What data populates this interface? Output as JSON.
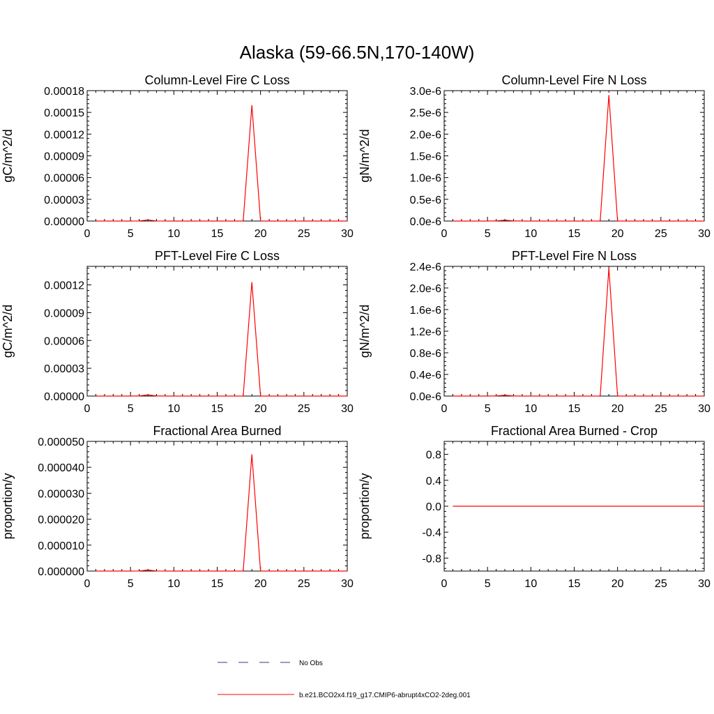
{
  "figure_title": "Alaska (59-66.5N,170-140W)",
  "legend": {
    "items": [
      {
        "label": "No Obs",
        "color": "#2a3a8c",
        "dash": true
      },
      {
        "label": "b.e21.BCO2x4.f19_g17.CMIP6-abrupt4xCO2-2deg.001",
        "color": "#ff0000",
        "dash": false
      }
    ]
  },
  "chart_data": [
    {
      "type": "line",
      "title": "Column-Level Fire C Loss",
      "ylabel": "gC/m^2/d",
      "xlim": [
        0,
        30
      ],
      "ylim": [
        0,
        0.00018
      ],
      "xticks": [
        0,
        5,
        10,
        15,
        20,
        25,
        30
      ],
      "xtick_labels": [
        "0",
        "5",
        "10",
        "15",
        "20",
        "25",
        "30"
      ],
      "yticks": [
        0,
        3e-05,
        6e-05,
        9e-05,
        0.00012,
        0.00015,
        0.00018
      ],
      "ytick_labels": [
        "0.00000",
        "0.00003",
        "0.00006",
        "0.00009",
        "0.00012",
        "0.00015",
        "0.00018"
      ],
      "series": [
        {
          "color": "#ff0000",
          "x": [
            1,
            2,
            3,
            4,
            5,
            6,
            7,
            8,
            9,
            10,
            11,
            12,
            13,
            14,
            15,
            16,
            17,
            18,
            19,
            20,
            21,
            22,
            23,
            24,
            25,
            26,
            27,
            28,
            29,
            30
          ],
          "values": [
            0,
            0,
            0,
            0,
            0,
            2e-07,
            1.5e-06,
            2e-07,
            0,
            0,
            0,
            0,
            0,
            0,
            0,
            0,
            0,
            0,
            0.00016,
            0,
            0,
            0,
            0,
            0,
            0,
            0,
            0,
            0,
            0,
            0
          ]
        }
      ]
    },
    {
      "type": "line",
      "title": "Column-Level Fire N Loss",
      "ylabel": "gN/m^2/d",
      "xlim": [
        0,
        30
      ],
      "ylim": [
        0,
        3e-06
      ],
      "xticks": [
        0,
        5,
        10,
        15,
        20,
        25,
        30
      ],
      "xtick_labels": [
        "0",
        "5",
        "10",
        "15",
        "20",
        "25",
        "30"
      ],
      "yticks": [
        0,
        5e-07,
        1e-06,
        1.5e-06,
        2e-06,
        2.5e-06,
        3e-06
      ],
      "ytick_labels": [
        "0.0e-6",
        "0.5e-6",
        "1.0e-6",
        "1.5e-6",
        "2.0e-6",
        "2.5e-6",
        "3.0e-6"
      ],
      "series": [
        {
          "color": "#ff0000",
          "x": [
            1,
            2,
            3,
            4,
            5,
            6,
            7,
            8,
            9,
            10,
            11,
            12,
            13,
            14,
            15,
            16,
            17,
            18,
            19,
            20,
            21,
            22,
            23,
            24,
            25,
            26,
            27,
            28,
            29,
            30
          ],
          "values": [
            0,
            0,
            0,
            0,
            0,
            4e-09,
            2e-08,
            4e-09,
            0,
            0,
            0,
            0,
            0,
            0,
            0,
            0,
            0,
            0,
            2.9e-06,
            0,
            0,
            0,
            0,
            0,
            0,
            0,
            0,
            0,
            0,
            0
          ]
        }
      ]
    },
    {
      "type": "line",
      "title": "PFT-Level Fire C Loss",
      "ylabel": "gC/m^2/d",
      "xlim": [
        0,
        30
      ],
      "ylim": [
        0,
        0.00014
      ],
      "xticks": [
        0,
        5,
        10,
        15,
        20,
        25,
        30
      ],
      "xtick_labels": [
        "0",
        "5",
        "10",
        "15",
        "20",
        "25",
        "30"
      ],
      "yticks": [
        0,
        3e-05,
        6e-05,
        9e-05,
        0.00012
      ],
      "ytick_labels": [
        "0.00000",
        "0.00003",
        "0.00006",
        "0.00009",
        "0.00012"
      ],
      "series": [
        {
          "color": "#ff0000",
          "x": [
            1,
            2,
            3,
            4,
            5,
            6,
            7,
            8,
            9,
            10,
            11,
            12,
            13,
            14,
            15,
            16,
            17,
            18,
            19,
            20,
            21,
            22,
            23,
            24,
            25,
            26,
            27,
            28,
            29,
            30
          ],
          "values": [
            0,
            0,
            0,
            0,
            0,
            2e-07,
            1.2e-06,
            2e-07,
            0,
            0,
            0,
            0,
            0,
            0,
            0,
            0,
            0,
            0,
            0.000123,
            0,
            0,
            0,
            0,
            0,
            0,
            0,
            0,
            0,
            0,
            0
          ]
        }
      ]
    },
    {
      "type": "line",
      "title": "PFT-Level Fire N Loss",
      "ylabel": "gN/m^2/d",
      "xlim": [
        0,
        30
      ],
      "ylim": [
        0,
        2.4e-06
      ],
      "xticks": [
        0,
        5,
        10,
        15,
        20,
        25,
        30
      ],
      "xtick_labels": [
        "0",
        "5",
        "10",
        "15",
        "20",
        "25",
        "30"
      ],
      "yticks": [
        0,
        4e-07,
        8e-07,
        1.2e-06,
        1.6e-06,
        2e-06,
        2.4e-06
      ],
      "ytick_labels": [
        "0.0e-6",
        "0.4e-6",
        "0.8e-6",
        "1.2e-6",
        "1.6e-6",
        "2.0e-6",
        "2.4e-6"
      ],
      "series": [
        {
          "color": "#ff0000",
          "x": [
            1,
            2,
            3,
            4,
            5,
            6,
            7,
            8,
            9,
            10,
            11,
            12,
            13,
            14,
            15,
            16,
            17,
            18,
            19,
            20,
            21,
            22,
            23,
            24,
            25,
            26,
            27,
            28,
            29,
            30
          ],
          "values": [
            0,
            0,
            0,
            0,
            0,
            3e-09,
            1.5e-08,
            3e-09,
            0,
            0,
            0,
            0,
            0,
            0,
            0,
            0,
            0,
            0,
            2.37e-06,
            0,
            0,
            0,
            0,
            0,
            0,
            0,
            0,
            0,
            0,
            0
          ]
        }
      ]
    },
    {
      "type": "line",
      "title": "Fractional Area Burned",
      "ylabel": "proportion/y",
      "xlim": [
        0,
        30
      ],
      "ylim": [
        0,
        5e-05
      ],
      "xticks": [
        0,
        5,
        10,
        15,
        20,
        25,
        30
      ],
      "xtick_labels": [
        "0",
        "5",
        "10",
        "15",
        "20",
        "25",
        "30"
      ],
      "yticks": [
        0,
        1e-05,
        2e-05,
        3e-05,
        4e-05,
        5e-05
      ],
      "ytick_labels": [
        "0.000000",
        "0.000010",
        "0.000020",
        "0.000030",
        "0.000040",
        "0.000050"
      ],
      "series": [
        {
          "color": "#ff0000",
          "x": [
            1,
            2,
            3,
            4,
            5,
            6,
            7,
            8,
            9,
            10,
            11,
            12,
            13,
            14,
            15,
            16,
            17,
            18,
            19,
            20,
            21,
            22,
            23,
            24,
            25,
            26,
            27,
            28,
            29,
            30
          ],
          "values": [
            0,
            0,
            0,
            0,
            0,
            5e-08,
            4e-07,
            5e-08,
            0,
            0,
            0,
            0,
            0,
            0,
            0,
            0,
            0,
            0,
            4.5e-05,
            0,
            0,
            0,
            0,
            0,
            0,
            0,
            0,
            0,
            0,
            0
          ]
        }
      ]
    },
    {
      "type": "line",
      "title": "Fractional Area Burned - Crop",
      "ylabel": "proportion/y",
      "xlim": [
        0,
        30
      ],
      "ylim": [
        -1,
        1
      ],
      "xticks": [
        0,
        5,
        10,
        15,
        20,
        25,
        30
      ],
      "xtick_labels": [
        "0",
        "5",
        "10",
        "15",
        "20",
        "25",
        "30"
      ],
      "yticks": [
        -0.8,
        -0.4,
        0,
        0.4,
        0.8
      ],
      "ytick_labels": [
        "-0.8",
        "-0.4",
        "0.0",
        "0.4",
        "0.8"
      ],
      "series": [
        {
          "color": "#ff0000",
          "x": [
            1,
            2,
            3,
            4,
            5,
            6,
            7,
            8,
            9,
            10,
            11,
            12,
            13,
            14,
            15,
            16,
            17,
            18,
            19,
            20,
            21,
            22,
            23,
            24,
            25,
            26,
            27,
            28,
            29,
            30
          ],
          "values": [
            0,
            0,
            0,
            0,
            0,
            0,
            0,
            0,
            0,
            0,
            0,
            0,
            0,
            0,
            0,
            0,
            0,
            0,
            0,
            0,
            0,
            0,
            0,
            0,
            0,
            0,
            0,
            0,
            0,
            0
          ]
        }
      ]
    }
  ]
}
